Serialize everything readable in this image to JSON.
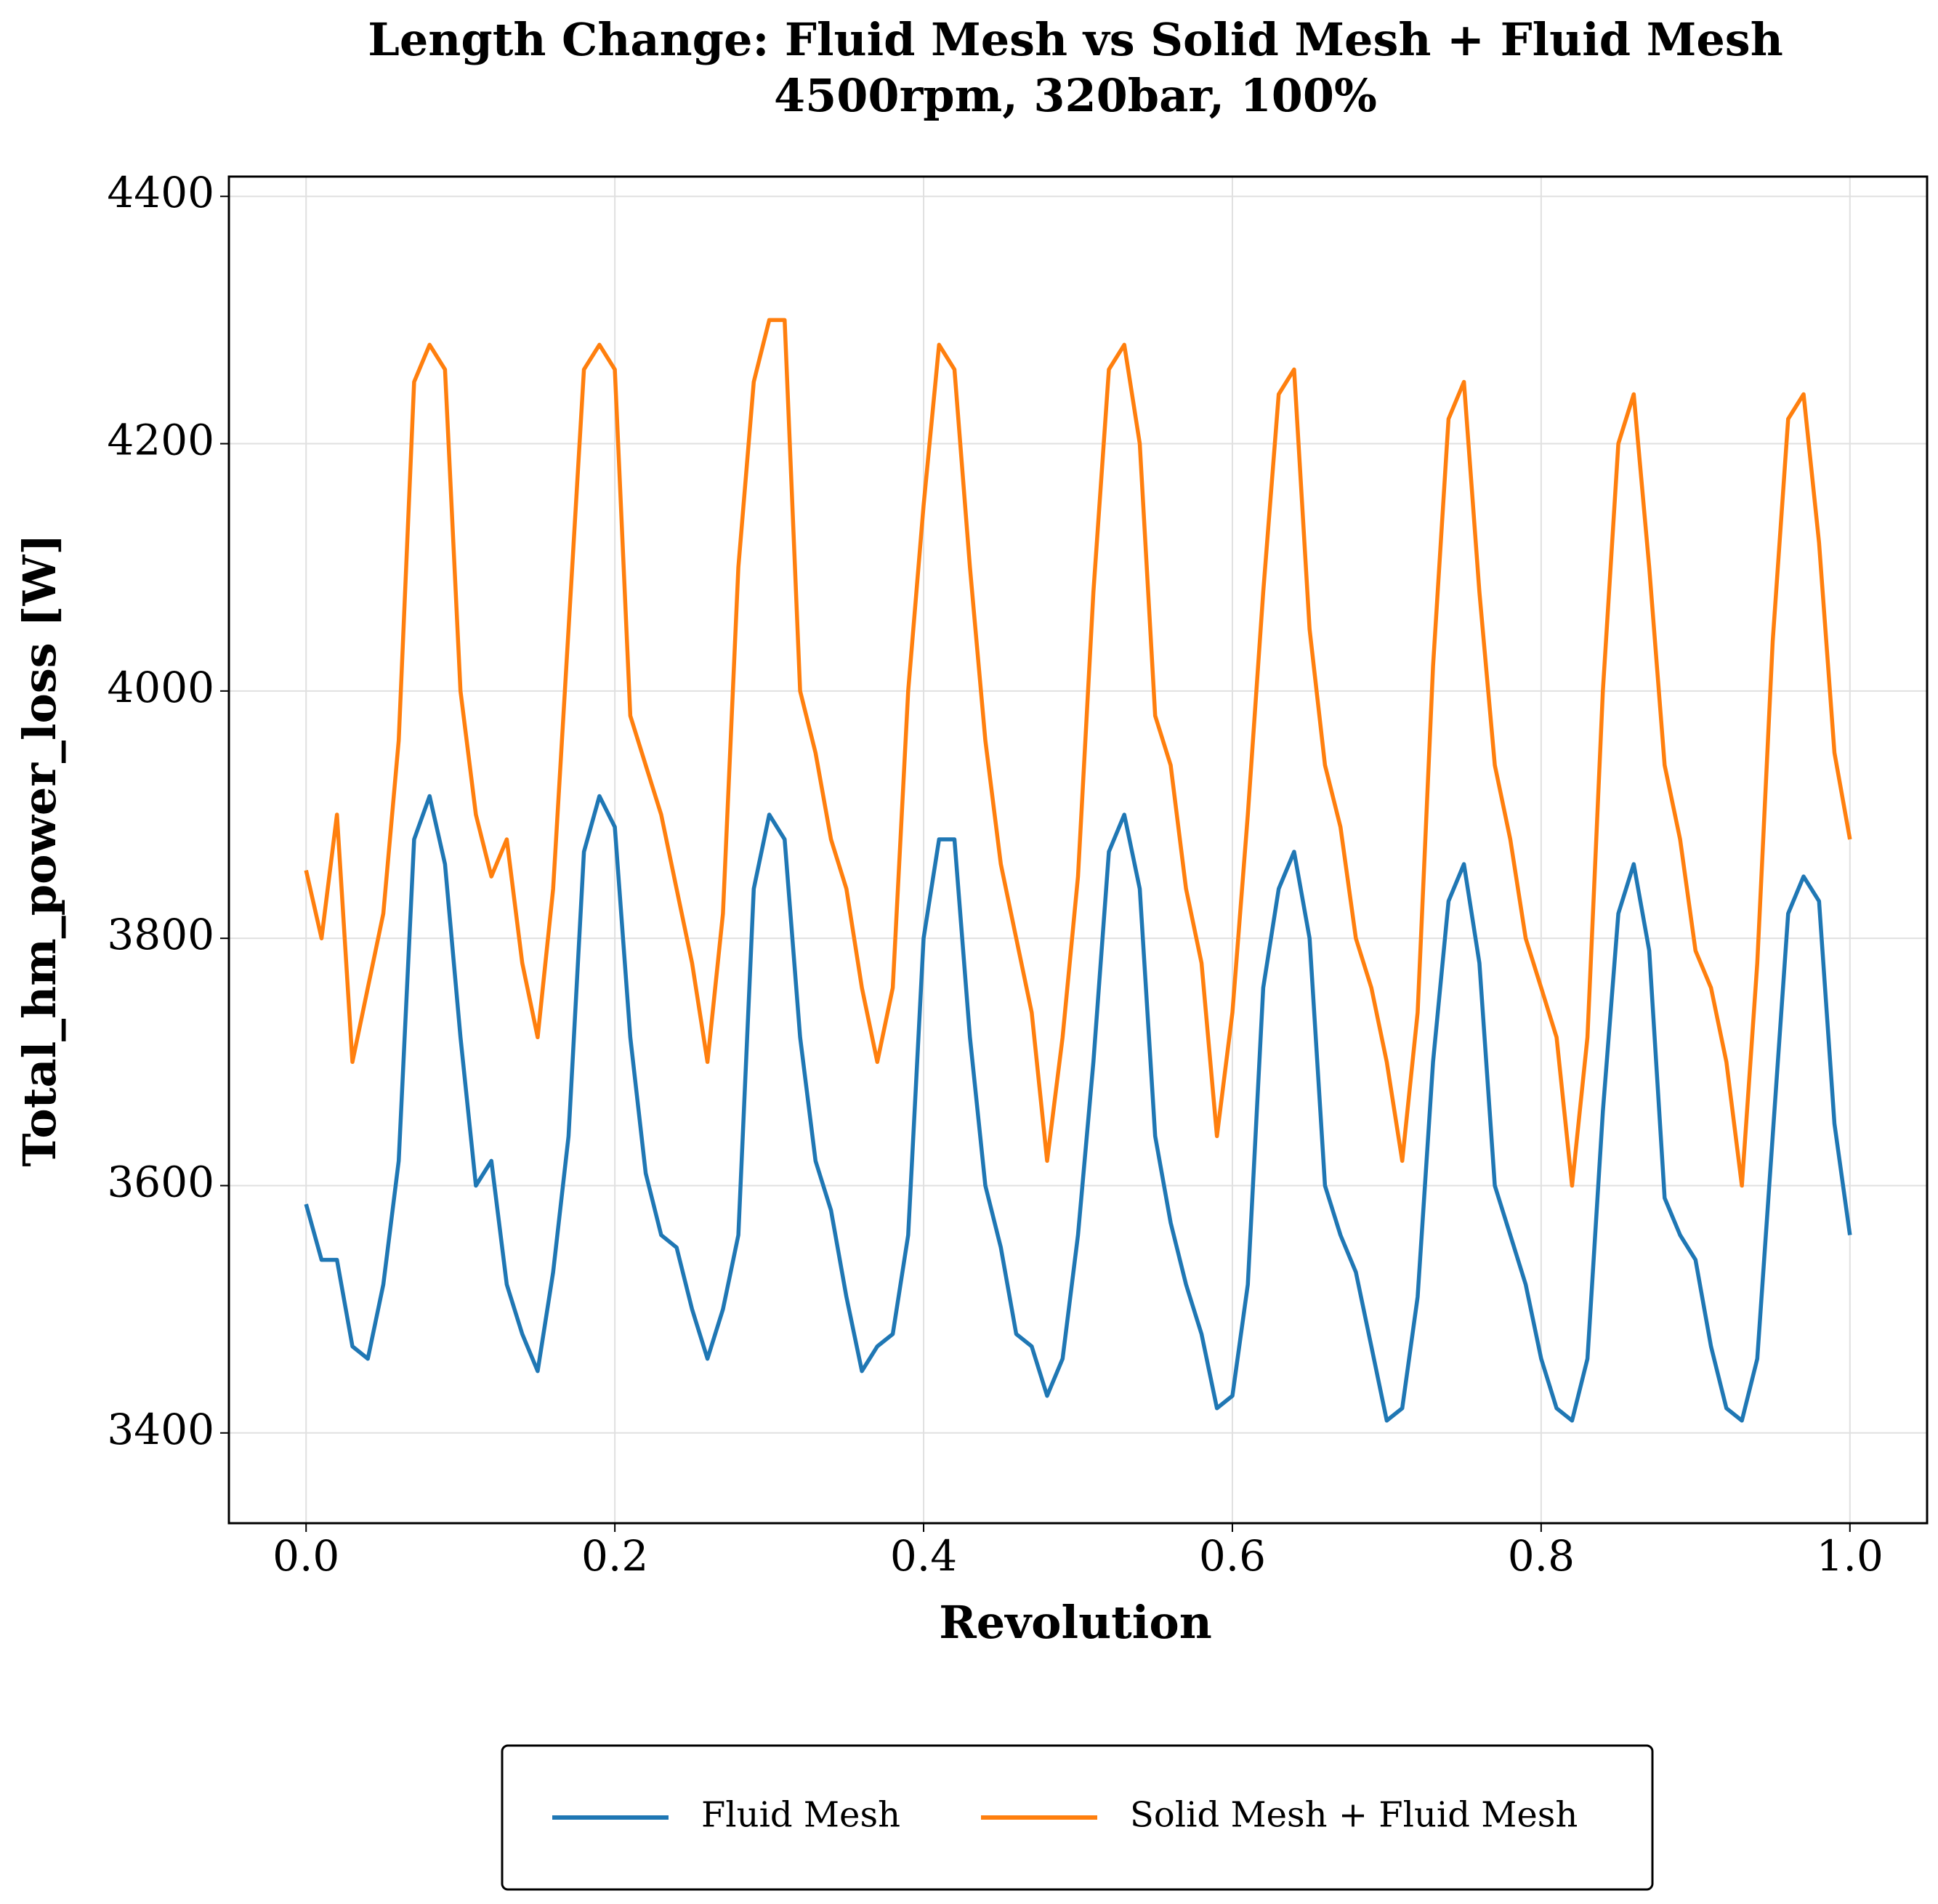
{
  "chart_data": {
    "type": "line",
    "title": "Length Change: Fluid Mesh vs Solid Mesh + Fluid Mesh",
    "subtitle": "4500rpm, 320bar, 100%",
    "x_label": "Revolution",
    "y_label": "Total_hm_power_loss [W]",
    "x": [
      0,
      0.01,
      0.02,
      0.03,
      0.04,
      0.05,
      0.06,
      0.07,
      0.08,
      0.09,
      0.1,
      0.11,
      0.12,
      0.13,
      0.14,
      0.15,
      0.16,
      0.17,
      0.18,
      0.19,
      0.2,
      0.21,
      0.22,
      0.23,
      0.24,
      0.25,
      0.26,
      0.27,
      0.28,
      0.29,
      0.3,
      0.31,
      0.32,
      0.33,
      0.34,
      0.35,
      0.36,
      0.37,
      0.38,
      0.39,
      0.4,
      0.41,
      0.42,
      0.43,
      0.44,
      0.45,
      0.46,
      0.47,
      0.48,
      0.49,
      0.5,
      0.51,
      0.52,
      0.53,
      0.54,
      0.55,
      0.56,
      0.57,
      0.58,
      0.59,
      0.6,
      0.61,
      0.62,
      0.63,
      0.64,
      0.65,
      0.66,
      0.67,
      0.68,
      0.69,
      0.7,
      0.71,
      0.72,
      0.73,
      0.74,
      0.75,
      0.76,
      0.77,
      0.78,
      0.79,
      0.8,
      0.81,
      0.82,
      0.83,
      0.84,
      0.85,
      0.86,
      0.87,
      0.88,
      0.89,
      0.9,
      0.91,
      0.92,
      0.93,
      0.94,
      0.95,
      0.96,
      0.97,
      0.98,
      0.99,
      1
    ],
    "series": [
      {
        "name": "Fluid Mesh",
        "color": "#1f77b4",
        "values": [
          3585,
          3540,
          3540,
          3470,
          3460,
          3520,
          3620,
          3880,
          3915,
          3860,
          3720,
          3600,
          3620,
          3520,
          3480,
          3450,
          3530,
          3640,
          3870,
          3915,
          3890,
          3720,
          3610,
          3560,
          3550,
          3500,
          3460,
          3500,
          3560,
          3840,
          3900,
          3880,
          3720,
          3620,
          3580,
          3510,
          3450,
          3470,
          3480,
          3560,
          3800,
          3880,
          3880,
          3720,
          3600,
          3550,
          3480,
          3470,
          3430,
          3460,
          3560,
          3700,
          3870,
          3900,
          3840,
          3640,
          3570,
          3520,
          3480,
          3420,
          3430,
          3520,
          3760,
          3840,
          3870,
          3800,
          3600,
          3560,
          3530,
          3470,
          3410,
          3420,
          3510,
          3700,
          3830,
          3860,
          3780,
          3600,
          3560,
          3520,
          3460,
          3420,
          3410,
          3460,
          3660,
          3820,
          3860,
          3790,
          3590,
          3560,
          3540,
          3470,
          3420,
          3410,
          3460,
          3640,
          3820,
          3850,
          3830,
          3650,
          3560
        ]
      },
      {
        "name": "Solid Mesh + Fluid Mesh",
        "color": "#ff7f0e",
        "values": [
          3855,
          3800,
          3900,
          3700,
          3760,
          3820,
          3960,
          4250,
          4280,
          4260,
          4000,
          3900,
          3850,
          3880,
          3780,
          3720,
          3840,
          4050,
          4260,
          4280,
          4260,
          3980,
          3940,
          3900,
          3840,
          3780,
          3700,
          3820,
          4100,
          4250,
          4300,
          4300,
          4000,
          3950,
          3880,
          3840,
          3760,
          3700,
          3760,
          4000,
          4150,
          4280,
          4260,
          4100,
          3960,
          3860,
          3800,
          3740,
          3620,
          3720,
          3850,
          4080,
          4260,
          4280,
          4200,
          3980,
          3940,
          3840,
          3780,
          3640,
          3740,
          3900,
          4080,
          4240,
          4260,
          4050,
          3940,
          3890,
          3800,
          3760,
          3700,
          3620,
          3740,
          4020,
          4220,
          4250,
          4080,
          3940,
          3880,
          3800,
          3760,
          3720,
          3600,
          3720,
          4000,
          4200,
          4240,
          4100,
          3940,
          3880,
          3790,
          3760,
          3700,
          3600,
          3780,
          4040,
          4220,
          4240,
          4120,
          3950,
          3880
        ]
      }
    ],
    "xlim": [
      -0.05,
      1.05
    ],
    "ylim": [
      3327,
      4416
    ],
    "xticks": [
      {
        "value": 0,
        "label": "0.0"
      },
      {
        "value": 0.2,
        "label": "0.2"
      },
      {
        "value": 0.4,
        "label": "0.4"
      },
      {
        "value": 0.6,
        "label": "0.6"
      },
      {
        "value": 0.8,
        "label": "0.8"
      },
      {
        "value": 1,
        "label": "1.0"
      }
    ],
    "yticks": [
      3400,
      3600,
      3800,
      4000,
      4200,
      4400
    ],
    "grid": true,
    "legend": "bottom"
  }
}
